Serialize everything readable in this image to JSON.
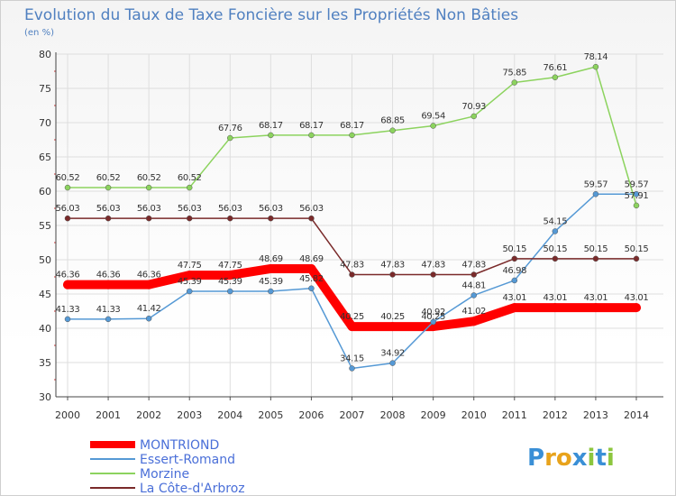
{
  "chart_data": {
    "type": "line",
    "title": "Evolution du Taux de Taxe Foncière sur les Propriétés Non Bâties",
    "subtitle": "(en %)",
    "x": [
      2000,
      2001,
      2002,
      2003,
      2004,
      2005,
      2006,
      2007,
      2008,
      2009,
      2010,
      2011,
      2012,
      2013,
      2014
    ],
    "x_tick_labels": [
      "2000",
      "2001",
      "2002",
      "2003",
      "2004",
      "2005",
      "2006",
      "2007",
      "2008",
      "2009",
      "2010",
      "2011",
      "2012",
      "2013",
      "2014"
    ],
    "y_ticks": [
      30,
      35,
      40,
      45,
      50,
      55,
      60,
      65,
      70,
      75,
      80
    ],
    "y_tick_labels": [
      "30",
      "35",
      "40",
      "45",
      "50",
      "55",
      "60",
      "65",
      "70",
      "75",
      "80"
    ],
    "ylim": [
      30,
      80
    ],
    "grid": true,
    "legend_position": "bottom-left",
    "series": [
      {
        "name": "MONTRIOND",
        "color": "#ff0000",
        "values": [
          46.36,
          46.36,
          46.36,
          47.75,
          47.75,
          48.69,
          48.69,
          40.25,
          40.25,
          40.25,
          41.02,
          43.01,
          43.01,
          43.01,
          43.01
        ],
        "labels": [
          "46.36",
          "46.36",
          "46.36",
          "47.75",
          "47.75",
          "48.69",
          "48.69",
          "40.25",
          "40.25",
          "40.25",
          "41.02",
          "43.01",
          "43.01",
          "43.01",
          "43.01"
        ]
      },
      {
        "name": "Essert-Romand",
        "color": "#5599d5",
        "values": [
          41.33,
          41.33,
          41.42,
          45.39,
          45.39,
          45.39,
          45.82,
          34.15,
          34.92,
          40.92,
          44.81,
          46.98,
          54.15,
          59.57,
          59.57
        ],
        "labels": [
          "41.33",
          "41.33",
          "41.42",
          "45.39",
          "45.39",
          "45.39",
          "45.82",
          "34.15",
          "34.92",
          "40.92",
          "44.81",
          "46.98",
          "54.15",
          "59.57",
          "59.57"
        ]
      },
      {
        "name": "Morzine",
        "color": "#8cd35e",
        "values": [
          60.52,
          60.52,
          60.52,
          60.52,
          67.76,
          68.17,
          68.17,
          68.17,
          68.85,
          69.54,
          70.93,
          75.85,
          76.61,
          78.14,
          57.91
        ],
        "labels": [
          "60.52",
          "60.52",
          "60.52",
          "60.52",
          "67.76",
          "68.17",
          "68.17",
          "68.17",
          "68.85",
          "69.54",
          "70.93",
          "75.85",
          "76.61",
          "78.14",
          "57.91"
        ]
      },
      {
        "name": "La Côte-d'Arbroz",
        "color": "#7a2a2a",
        "values": [
          56.03,
          56.03,
          56.03,
          56.03,
          56.03,
          56.03,
          56.03,
          47.83,
          47.83,
          47.83,
          47.83,
          50.15,
          50.15,
          50.15,
          50.15
        ],
        "labels": [
          "56.03",
          "56.03",
          "56.03",
          "56.03",
          "56.03",
          "56.03",
          "56.03",
          "47.83",
          "47.83",
          "47.83",
          "47.83",
          "50.15",
          "50.15",
          "50.15",
          "50.15"
        ]
      }
    ]
  },
  "logo": {
    "text": "Proxiti",
    "letters": [
      "P",
      "r",
      "o",
      "x",
      "i",
      "t",
      "i"
    ],
    "colors": [
      "#3a8fd6",
      "#e8a31c",
      "#e8a31c",
      "#3a8fd6",
      "#8cc63e",
      "#3a8fd6",
      "#8cc63e"
    ]
  }
}
